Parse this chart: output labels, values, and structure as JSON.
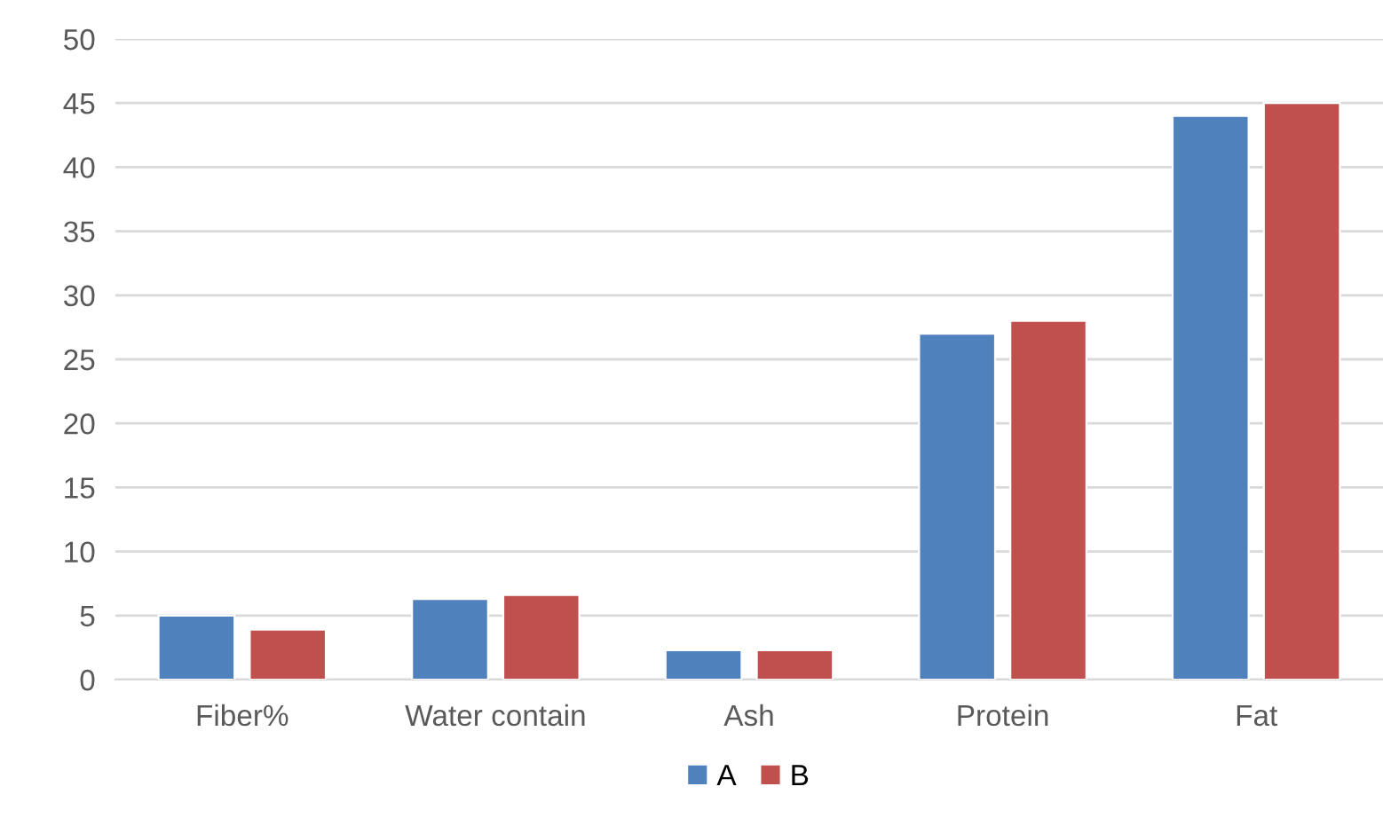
{
  "chart_data": {
    "type": "bar",
    "categories": [
      "Fiber%",
      "Water contain",
      "Ash",
      "Protein",
      "Fat"
    ],
    "series": [
      {
        "name": "A",
        "color": "#4f81bd",
        "values": [
          5,
          6.3,
          2.3,
          27,
          44
        ]
      },
      {
        "name": "B",
        "color": "#c0504d",
        "values": [
          3.9,
          6.6,
          2.3,
          28,
          45
        ]
      }
    ],
    "ylim": [
      0,
      50
    ],
    "yticks": [
      0,
      5,
      10,
      15,
      20,
      25,
      30,
      35,
      40,
      45,
      50
    ],
    "grid": "y",
    "legend": "bottom"
  }
}
